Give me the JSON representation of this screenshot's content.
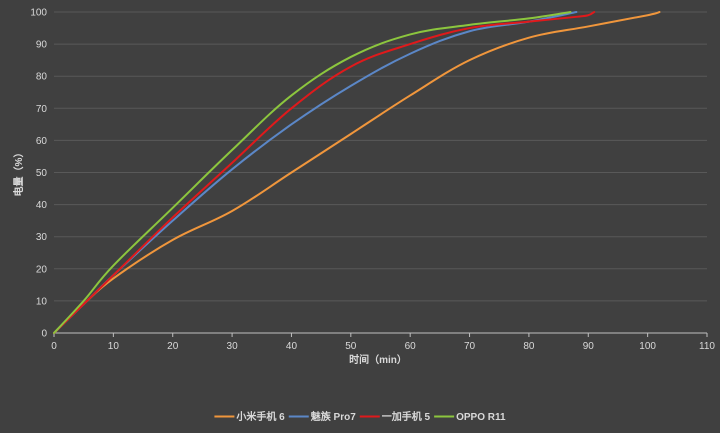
{
  "chart_data": {
    "type": "line",
    "title": "",
    "xlabel": "时间（min）",
    "ylabel": "电量（%）",
    "xlim": [
      0,
      110
    ],
    "ylim": [
      0,
      100
    ],
    "x_ticks": [
      "0",
      "10",
      "20",
      "30",
      "40",
      "50",
      "60",
      "70",
      "80",
      "90",
      "100",
      "110"
    ],
    "y_ticks": [
      "0",
      "10",
      "20",
      "30",
      "40",
      "50",
      "60",
      "70",
      "80",
      "90",
      "100"
    ],
    "grid": "horizontal",
    "legend_position": "bottom",
    "series": [
      {
        "name": "小米手机 6",
        "color": "#f0963c",
        "x": [
          0,
          5,
          10,
          20,
          30,
          40,
          50,
          60,
          70,
          80,
          90,
          100,
          102
        ],
        "y": [
          0,
          9,
          17,
          29,
          38,
          50,
          62,
          74,
          85,
          92,
          95.5,
          99,
          100
        ]
      },
      {
        "name": "魅族 Pro7",
        "color": "#5b87c7",
        "x": [
          0,
          5,
          10,
          20,
          30,
          40,
          50,
          60,
          70,
          80,
          88
        ],
        "y": [
          0,
          9,
          18,
          35,
          51,
          65,
          77,
          87,
          94,
          97,
          100
        ]
      },
      {
        "name": "一加手机 5",
        "color": "#e0191b",
        "x": [
          0,
          5,
          10,
          20,
          30,
          40,
          50,
          60,
          70,
          80,
          88,
          90,
          91
        ],
        "y": [
          0,
          9,
          18,
          36,
          53,
          70,
          83,
          90,
          95,
          97,
          98.5,
          99,
          100
        ]
      },
      {
        "name": "OPPO R11",
        "color": "#8cc63e",
        "x": [
          0,
          5,
          10,
          20,
          30,
          40,
          50,
          60,
          70,
          80,
          87
        ],
        "y": [
          0,
          10,
          21,
          39,
          57,
          74,
          86,
          93,
          96,
          98,
          100
        ]
      }
    ]
  }
}
